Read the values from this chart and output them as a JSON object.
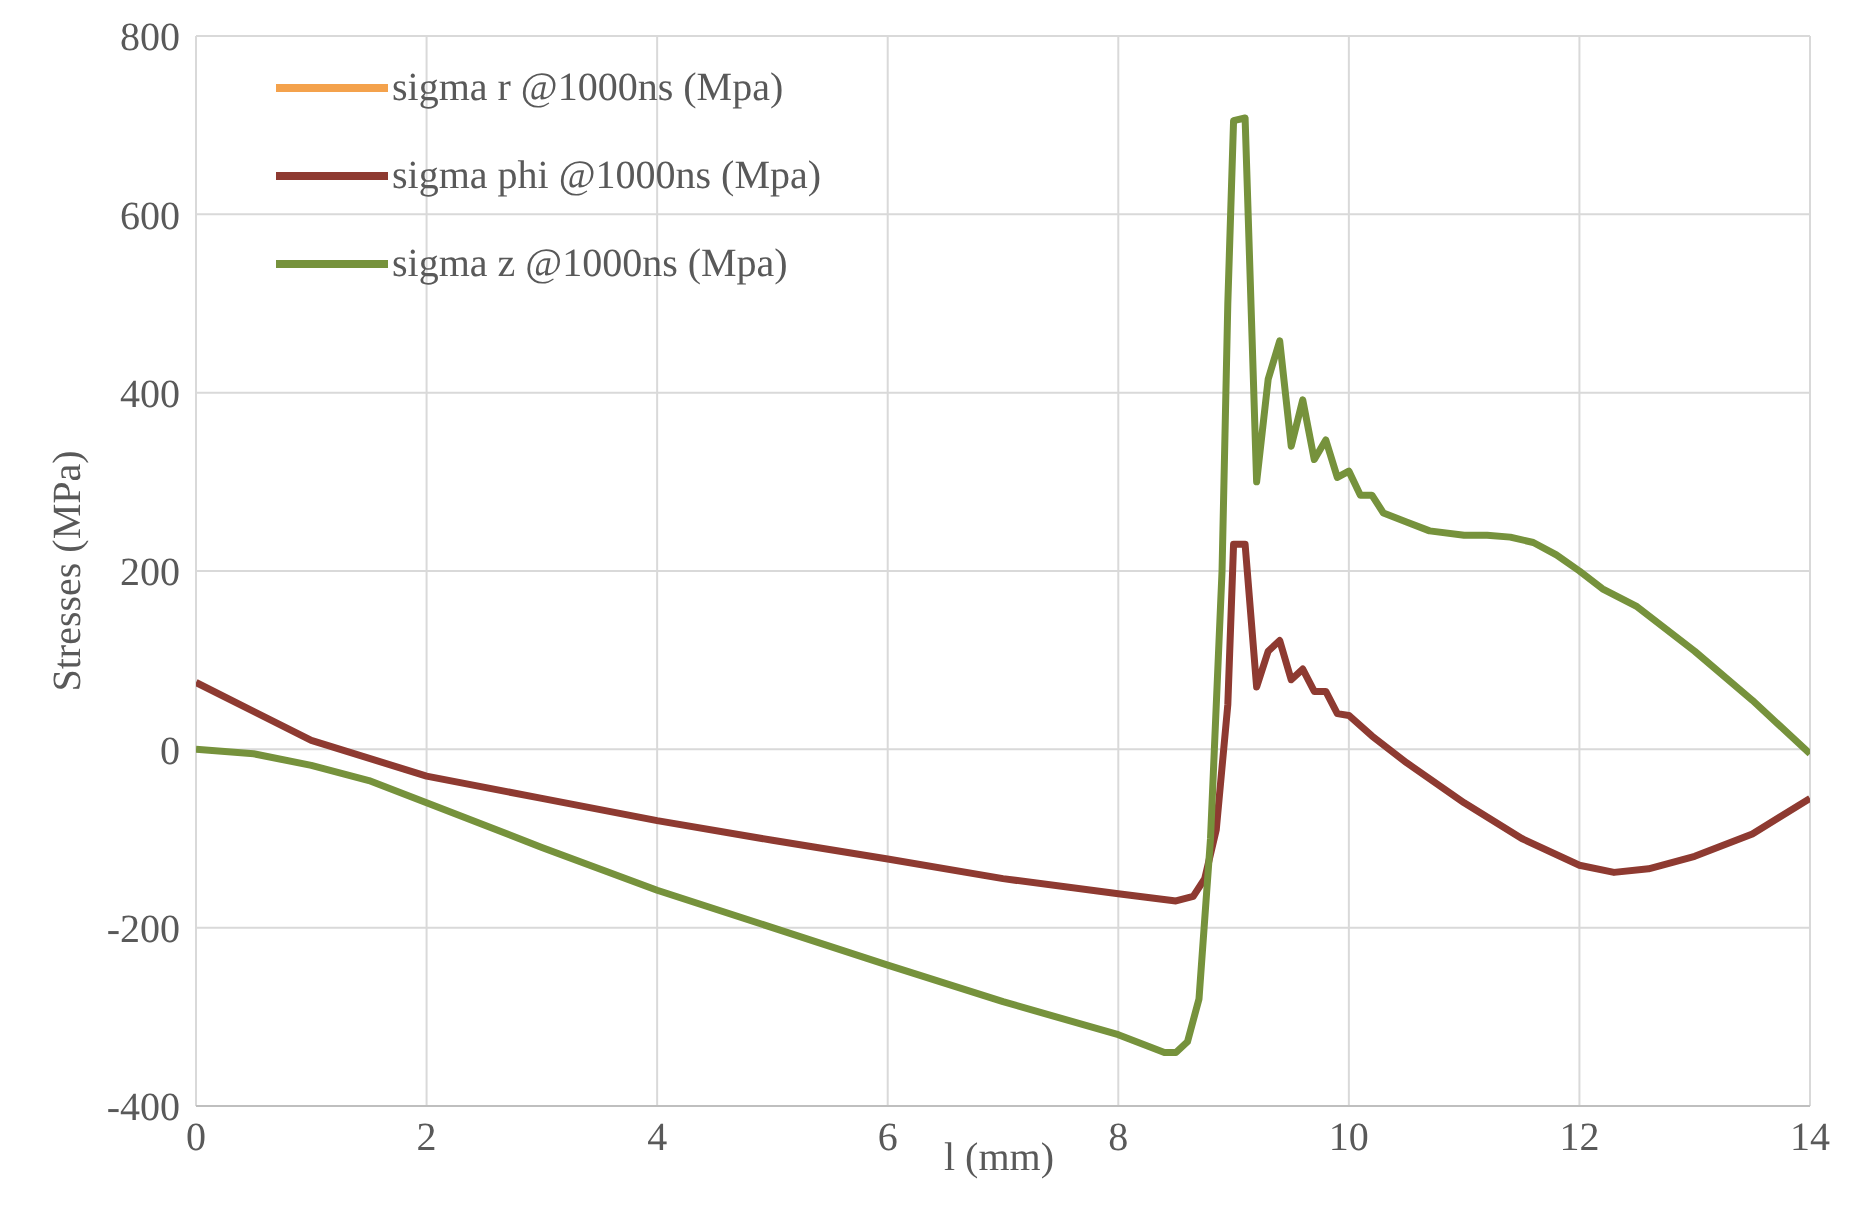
{
  "chart_data": {
    "type": "line",
    "xlabel": "l (mm)",
    "ylabel": "Stresses (MPa)",
    "xlim": [
      0,
      14
    ],
    "xticks": [
      0,
      2,
      4,
      6,
      8,
      10,
      12,
      14
    ],
    "ylim": [
      -400,
      800
    ],
    "yticks": [
      -400,
      -200,
      0,
      200,
      400,
      600,
      800
    ],
    "grid": true,
    "legend": "top left",
    "marker": "none",
    "line_style": "solid",
    "series": [
      {
        "name": "sigma r @1000ns (Mpa)",
        "color": "#f4a24c"
      },
      {
        "name": "sigma phi @1000ns (Mpa)",
        "color": "#8e3a31",
        "x": [
          0,
          1,
          2,
          3,
          4,
          5,
          6,
          7,
          8,
          8.5,
          8.65,
          8.75,
          8.85,
          8.95,
          9.0,
          9.1,
          9.2,
          9.3,
          9.4,
          9.5,
          9.6,
          9.7,
          9.8,
          9.9,
          10.0,
          10.2,
          10.5,
          11,
          11.5,
          12,
          12.3,
          12.6,
          13,
          13.5,
          14
        ],
        "values": [
          75,
          10,
          -30,
          -55,
          -80,
          -102,
          -123,
          -145,
          -162,
          -170,
          -165,
          -145,
          -90,
          50,
          230,
          230,
          70,
          110,
          122,
          78,
          90,
          65,
          65,
          40,
          38,
          15,
          -15,
          -60,
          -100,
          -130,
          -138,
          -134,
          -120,
          -95,
          -55
        ]
      },
      {
        "name": "sigma z @1000ns (Mpa)",
        "color": "#76923c",
        "x": [
          0,
          0.5,
          1,
          1.5,
          2,
          3,
          4,
          5,
          6,
          7,
          8,
          8.4,
          8.5,
          8.6,
          8.7,
          8.8,
          8.9,
          8.95,
          9.0,
          9.1,
          9.2,
          9.3,
          9.4,
          9.5,
          9.6,
          9.7,
          9.8,
          9.9,
          10.0,
          10.1,
          10.2,
          10.3,
          10.5,
          10.7,
          11,
          11.2,
          11.4,
          11.6,
          11.8,
          12,
          12.2,
          12.5,
          13,
          13.5,
          14
        ],
        "values": [
          0,
          -5,
          -18,
          -35,
          -60,
          -110,
          -158,
          -200,
          -242,
          -283,
          -320,
          -340,
          -340,
          -328,
          -280,
          -100,
          200,
          500,
          705,
          708,
          300,
          415,
          458,
          340,
          392,
          325,
          347,
          305,
          312,
          285,
          285,
          265,
          255,
          245,
          240,
          240,
          238,
          232,
          218,
          200,
          180,
          160,
          110,
          55,
          -5
        ]
      }
    ]
  }
}
